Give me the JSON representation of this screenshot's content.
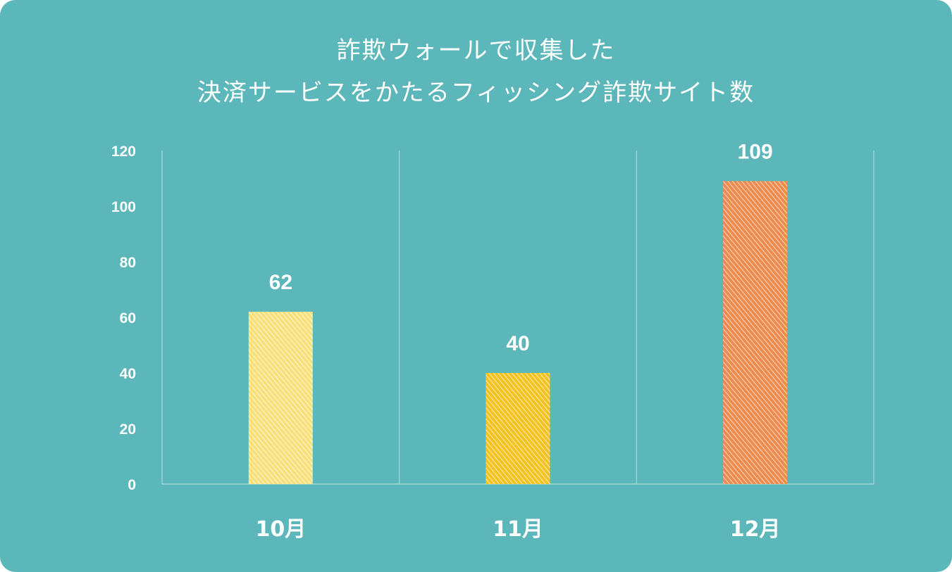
{
  "title_lines": [
    "詐欺ウォールで収集した",
    "決済サービスをかたるフィッシング詐欺サイト数"
  ],
  "chart_data": {
    "type": "bar",
    "title": "詐欺ウォールで収集した 決済サービスをかたるフィッシング詐欺サイト数",
    "categories": [
      "10月",
      "11月",
      "12月"
    ],
    "values": [
      62,
      40,
      109
    ],
    "value_labels": [
      "62",
      "40",
      "109"
    ],
    "y_ticks": [
      "0",
      "20",
      "40",
      "60",
      "80",
      "100",
      "120"
    ],
    "ylim": [
      0,
      120
    ],
    "bar_colors": [
      "#f7e07a",
      "#f3c21e",
      "#ee8a4c"
    ],
    "background_color": "#5bb7b9",
    "grid": "vertical separators only",
    "legend": "none",
    "xlabel": "",
    "ylabel": ""
  }
}
